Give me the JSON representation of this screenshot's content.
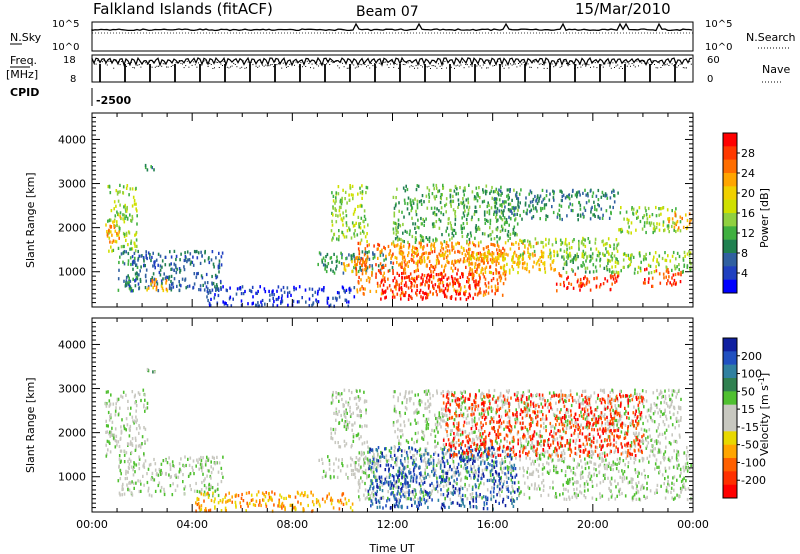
{
  "header": {
    "site": "Falkland Islands (fitACF)",
    "beam": "Beam 07",
    "date": "15/Mar/2010"
  },
  "top_panels": {
    "nsky": {
      "left_label": "N.Sky",
      "right_label": "N.Search",
      "ticks_left": [
        "10^5",
        "10^0"
      ],
      "ticks_right": [
        "10^5",
        "10^0"
      ]
    },
    "freq": {
      "left_label_1": "Freq.",
      "left_label_2": "[MHz]",
      "right_label": "Nave",
      "ticks_left": [
        "18",
        "8"
      ],
      "ticks_right": [
        "60",
        "0"
      ]
    },
    "cpid": {
      "label": "CPID",
      "value": "-2500"
    }
  },
  "chart_data": [
    {
      "type": "heatmap",
      "name": "power",
      "ylabel": "Slant Range [km]",
      "ylim": [
        200,
        4600
      ],
      "y_ticks": [
        1000,
        2000,
        3000,
        4000
      ],
      "xlim": [
        0,
        24
      ],
      "x_ticks": [
        "00:00",
        "04:00",
        "08:00",
        "12:00",
        "16:00",
        "20:00",
        "00:00"
      ],
      "colorbar": {
        "label": "Power [dB]",
        "ticks": [
          "28",
          "24",
          "20",
          "16",
          "12",
          "8",
          "4"
        ],
        "colors": [
          "#ff0000",
          "#ff3800",
          "#ff6e00",
          "#ffa500",
          "#f0d000",
          "#cfe000",
          "#90d040",
          "#40b040",
          "#208050",
          "#3060a0",
          "#2040c0",
          "#0000ff"
        ]
      },
      "regions": [
        {
          "t0": 0.6,
          "t1": 1.8,
          "r0": 1500,
          "r1": 3000,
          "level": 6
        },
        {
          "t0": 0.5,
          "t1": 1.2,
          "r0": 1700,
          "r1": 2300,
          "level": 3
        },
        {
          "t0": 1.0,
          "t1": 2.0,
          "r0": 600,
          "r1": 1500,
          "level": 8
        },
        {
          "t0": 1.4,
          "t1": 5.2,
          "r0": 600,
          "r1": 1500,
          "level": 9
        },
        {
          "t0": 2.0,
          "t1": 3.0,
          "r0": 600,
          "r1": 900,
          "level": 3
        },
        {
          "t0": 2.0,
          "t1": 2.5,
          "r0": 3300,
          "r1": 3500,
          "level": 8
        },
        {
          "t0": 4.5,
          "t1": 10.5,
          "r0": 250,
          "r1": 700,
          "level": 10
        },
        {
          "t0": 9.0,
          "t1": 12.0,
          "r0": 1000,
          "r1": 1500,
          "level": 8
        },
        {
          "t0": 9.5,
          "t1": 11.0,
          "r0": 1700,
          "r1": 3000,
          "level": 6
        },
        {
          "t0": 10.0,
          "t1": 11.0,
          "r0": 1000,
          "r1": 1400,
          "level": 3
        },
        {
          "t0": 10.5,
          "t1": 16.5,
          "r0": 500,
          "r1": 1700,
          "level": 2
        },
        {
          "t0": 11.5,
          "t1": 15.5,
          "r0": 400,
          "r1": 1000,
          "level": 0
        },
        {
          "t0": 12.0,
          "t1": 18.0,
          "r0": 1200,
          "r1": 1700,
          "level": 3
        },
        {
          "t0": 12.0,
          "t1": 17.0,
          "r0": 1700,
          "r1": 3000,
          "level": 7
        },
        {
          "t0": 15.0,
          "t1": 18.5,
          "r0": 1000,
          "r1": 1500,
          "level": 4
        },
        {
          "t0": 16.0,
          "t1": 21.0,
          "r0": 2200,
          "r1": 2900,
          "level": 8
        },
        {
          "t0": 17.0,
          "t1": 21.0,
          "r0": 1300,
          "r1": 1800,
          "level": 6
        },
        {
          "t0": 18.5,
          "t1": 21.0,
          "r0": 600,
          "r1": 1000,
          "level": 1
        },
        {
          "t0": 18.7,
          "t1": 21.0,
          "r0": 1000,
          "r1": 1400,
          "level": 7
        },
        {
          "t0": 20.5,
          "t1": 23.9,
          "r0": 1000,
          "r1": 1500,
          "level": 6
        },
        {
          "t0": 21.0,
          "t1": 23.5,
          "r0": 1900,
          "r1": 2500,
          "level": 6
        },
        {
          "t0": 22.0,
          "t1": 23.5,
          "r0": 700,
          "r1": 1100,
          "level": 1
        },
        {
          "t0": 23.0,
          "t1": 23.9,
          "r0": 2000,
          "r1": 2400,
          "level": 3
        }
      ]
    },
    {
      "type": "heatmap",
      "name": "velocity",
      "xlabel": "Time UT",
      "ylabel": "Slant Range [km]",
      "ylim": [
        200,
        4600
      ],
      "y_ticks": [
        1000,
        2000,
        3000,
        4000
      ],
      "xlim": [
        0,
        24
      ],
      "x_ticks": [
        "00:00",
        "04:00",
        "08:00",
        "12:00",
        "16:00",
        "20:00",
        "00:00"
      ],
      "colorbar": {
        "label": "Velocity [m s",
        "label_sup": "-1",
        "label_end": "]",
        "ticks": [
          "200",
          "100",
          "50",
          "15",
          "-15",
          "-50",
          "-100",
          "-200"
        ],
        "colors": [
          "#1020a0",
          "#2050c0",
          "#3080a0",
          "#308050",
          "#50c030",
          "#c8c8c0",
          "#c8c8c0",
          "#e8d800",
          "#ffa500",
          "#ff6000",
          "#ff3000",
          "#ff0000"
        ]
      },
      "regions": [
        {
          "t0": 0.5,
          "t1": 2.2,
          "r0": 1500,
          "r1": 3000,
          "level": 5
        },
        {
          "t0": 1.0,
          "t1": 5.2,
          "r0": 600,
          "r1": 1500,
          "level": 5
        },
        {
          "t0": 2.0,
          "t1": 2.5,
          "r0": 3300,
          "r1": 3500,
          "level": 4
        },
        {
          "t0": 4.0,
          "t1": 10.5,
          "r0": 250,
          "r1": 700,
          "level": 8
        },
        {
          "t0": 9.0,
          "t1": 11.5,
          "r0": 1000,
          "r1": 1500,
          "level": 5
        },
        {
          "t0": 9.5,
          "t1": 11.0,
          "r0": 1700,
          "r1": 3000,
          "level": 5
        },
        {
          "t0": 10.5,
          "t1": 23.9,
          "r0": 500,
          "r1": 1700,
          "level": 5
        },
        {
          "t0": 12.0,
          "t1": 23.5,
          "r0": 1700,
          "r1": 3000,
          "level": 5
        },
        {
          "t0": 11.0,
          "t1": 17.0,
          "r0": 300,
          "r1": 1700,
          "level": 1
        },
        {
          "t0": 14.0,
          "t1": 22.0,
          "r0": 1500,
          "r1": 2900,
          "level": 10
        }
      ]
    }
  ]
}
